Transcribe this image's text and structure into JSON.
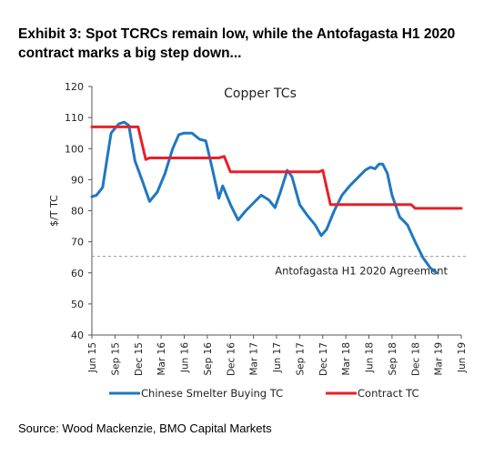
{
  "exhibit_title": "Exhibit 3: Spot TCRCs remain low, while the Antofagasta H1 2020 contract marks a big step down...",
  "source": "Source: Wood Mackenzie, BMO Capital Markets",
  "chart_data": {
    "type": "line",
    "title": "Copper TCs",
    "ylabel": "$/T TC",
    "xlabel": "",
    "ylim": [
      40,
      120
    ],
    "yticks": [
      40,
      50,
      60,
      70,
      80,
      90,
      100,
      110,
      120
    ],
    "x_range": [
      0,
      48
    ],
    "x_ticks": [
      {
        "label": "Jun 15",
        "x": 0
      },
      {
        "label": "Sep 15",
        "x": 3
      },
      {
        "label": "Dec 15",
        "x": 6
      },
      {
        "label": "Mar 16",
        "x": 9
      },
      {
        "label": "Jun 16",
        "x": 12
      },
      {
        "label": "Sep 16",
        "x": 15
      },
      {
        "label": "Dec 16",
        "x": 18
      },
      {
        "label": "Mar 17",
        "x": 21
      },
      {
        "label": "Jun 17",
        "x": 24
      },
      {
        "label": "Sep 17",
        "x": 27
      },
      {
        "label": "Dec 17",
        "x": 30
      },
      {
        "label": "Mar 18",
        "x": 33
      },
      {
        "label": "Jun 18",
        "x": 36
      },
      {
        "label": "Sep 18",
        "x": 39
      },
      {
        "label": "Dec 18",
        "x": 42
      },
      {
        "label": "Mar 19",
        "x": 45
      },
      {
        "label": "Jun 19",
        "x": 48
      }
    ],
    "grid": false,
    "legend_position": "bottom",
    "series": [
      {
        "name": "Chinese Smelter Buying TC",
        "color": "#1f78c1",
        "points": [
          [
            0,
            84.5
          ],
          [
            0.6,
            85
          ],
          [
            1.4,
            87.5
          ],
          [
            2.5,
            105
          ],
          [
            3.5,
            108
          ],
          [
            4.2,
            108.5
          ],
          [
            4.8,
            107.5
          ],
          [
            5.6,
            96
          ],
          [
            6.5,
            90
          ],
          [
            7.5,
            83
          ],
          [
            8.5,
            86
          ],
          [
            9.5,
            92
          ],
          [
            10.5,
            100
          ],
          [
            11.3,
            104.5
          ],
          [
            12,
            105
          ],
          [
            13,
            105
          ],
          [
            14,
            103
          ],
          [
            14.8,
            102.5
          ],
          [
            15.6,
            94
          ],
          [
            16.5,
            84
          ],
          [
            17,
            88
          ],
          [
            18,
            82
          ],
          [
            19,
            77
          ],
          [
            20,
            80
          ],
          [
            21,
            82.5
          ],
          [
            22,
            85
          ],
          [
            23,
            83.5
          ],
          [
            23.8,
            81
          ],
          [
            24.5,
            86
          ],
          [
            25.4,
            93
          ],
          [
            26,
            91
          ],
          [
            27,
            82
          ],
          [
            28,
            78.5
          ],
          [
            29,
            75.5
          ],
          [
            29.8,
            72
          ],
          [
            30.5,
            74
          ],
          [
            31.5,
            80
          ],
          [
            32.5,
            85
          ],
          [
            33.5,
            88
          ],
          [
            34.5,
            90.5
          ],
          [
            35.5,
            93
          ],
          [
            36.2,
            94
          ],
          [
            36.8,
            93.5
          ],
          [
            37.3,
            95
          ],
          [
            37.8,
            95
          ],
          [
            38.4,
            92
          ],
          [
            39,
            85
          ],
          [
            40,
            78
          ],
          [
            41,
            75.5
          ],
          [
            42,
            70
          ],
          [
            43,
            65
          ],
          [
            44,
            61.5
          ],
          [
            44.8,
            60
          ]
        ]
      },
      {
        "name": "Contract TC",
        "color": "#e8202a",
        "points": [
          [
            0,
            107
          ],
          [
            6,
            107
          ],
          [
            7,
            96.5
          ],
          [
            7.5,
            97
          ],
          [
            16.5,
            97
          ],
          [
            17.2,
            97.5
          ],
          [
            18,
            92.5
          ],
          [
            18.5,
            92.5
          ],
          [
            29.5,
            92.5
          ],
          [
            30,
            93
          ],
          [
            31,
            82
          ],
          [
            31.5,
            82
          ],
          [
            41.5,
            82
          ],
          [
            42,
            80.75
          ],
          [
            48,
            80.75
          ]
        ]
      }
    ],
    "reference_line": {
      "y": 65.3,
      "label": "Antofagasta H1 2020 Agreement",
      "style": "dashed",
      "color": "#999999"
    }
  }
}
